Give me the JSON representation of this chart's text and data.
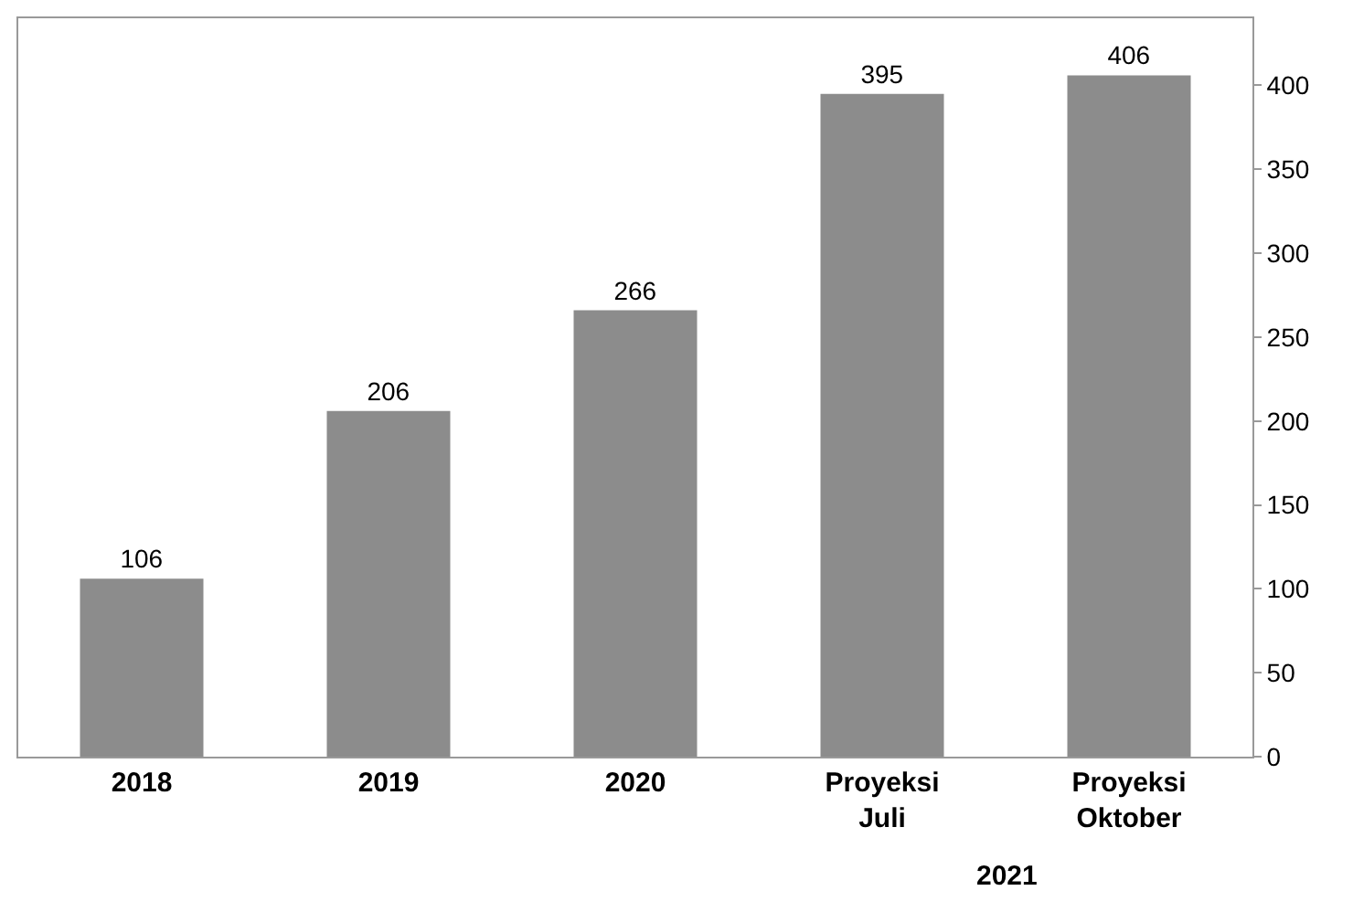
{
  "chart_data": {
    "type": "bar",
    "categories": [
      "2018",
      "2019",
      "2020",
      "Proyeksi Juli",
      "Proyeksi Oktober"
    ],
    "values": [
      106,
      206,
      266,
      395,
      406
    ],
    "color": "#8c8c8c",
    "data_labels": true,
    "ylim": [
      0,
      440
    ],
    "yticks": [
      0,
      50,
      100,
      150,
      200,
      250,
      300,
      350,
      400
    ],
    "grid": false,
    "annotations": [
      "2021"
    ]
  }
}
